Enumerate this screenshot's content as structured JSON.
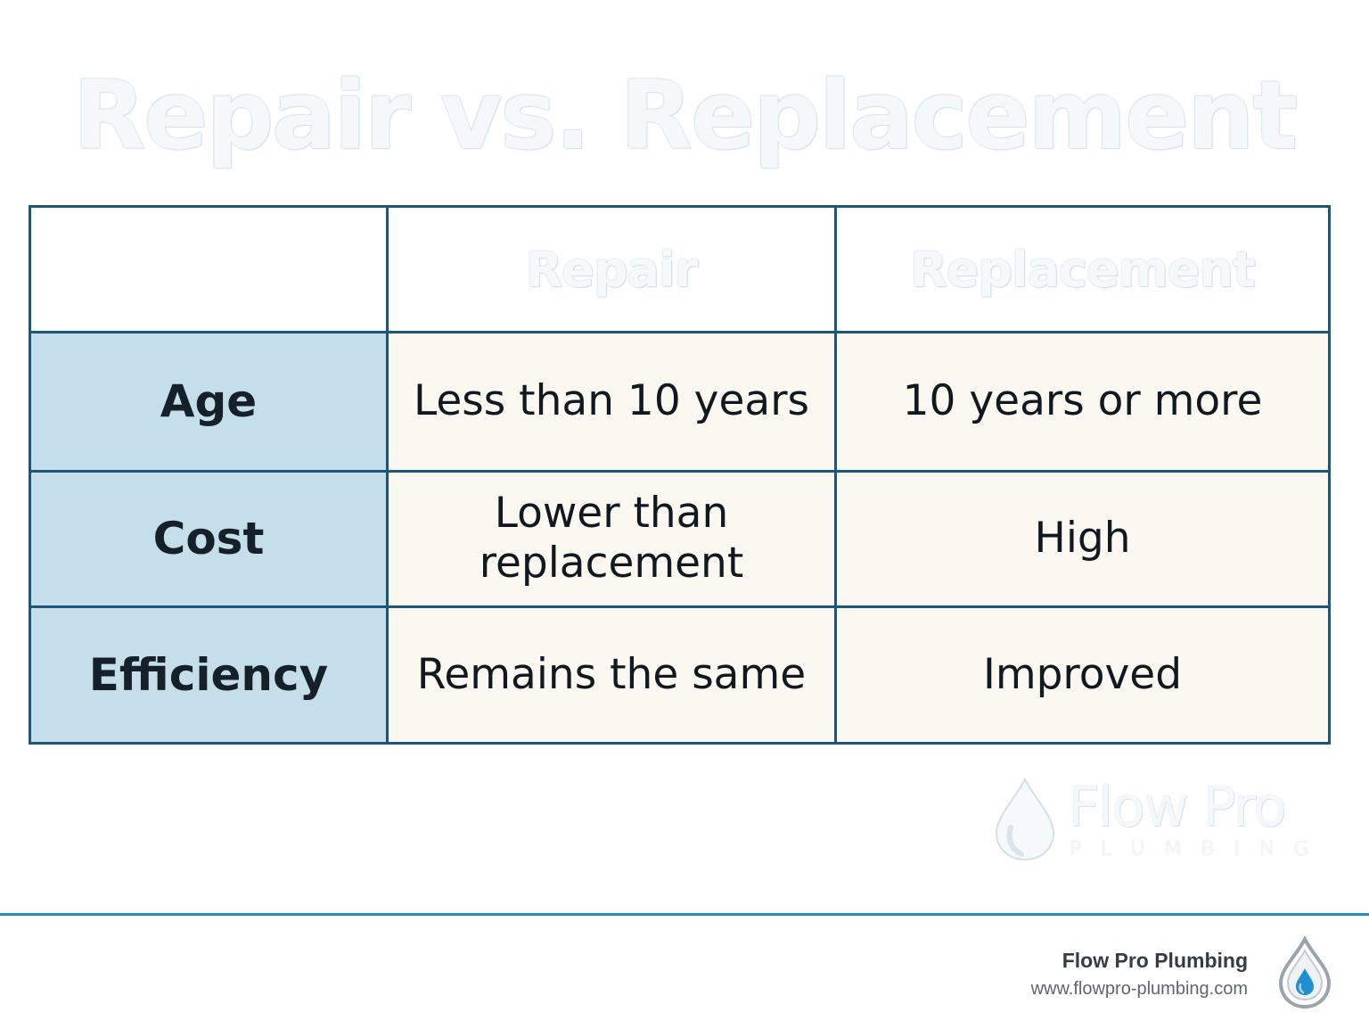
{
  "title": "Repair vs. Replacement",
  "table": {
    "headers": [
      "",
      "Repair",
      "Replacement"
    ],
    "rows": [
      {
        "label": "Age",
        "repair": "Less than 10 years",
        "replacement": "10 years or more"
      },
      {
        "label": "Cost",
        "repair": "Lower than replacement",
        "replacement": "High"
      },
      {
        "label": "Efficiency",
        "repair": "Remains the same",
        "replacement": "Improved"
      }
    ]
  },
  "watermark": {
    "name": "Flow Pro",
    "sub": "PLUMBING"
  },
  "footer": {
    "company": "Flow Pro Plumbing",
    "url": "www.flowpro-plumbing.com"
  },
  "colors": {
    "border": "#1c5678",
    "label_bg": "#c5dfea",
    "value_bg": "#faf8f0",
    "accent": "#1e90c4"
  },
  "icons": [
    "water-drop-icon"
  ]
}
